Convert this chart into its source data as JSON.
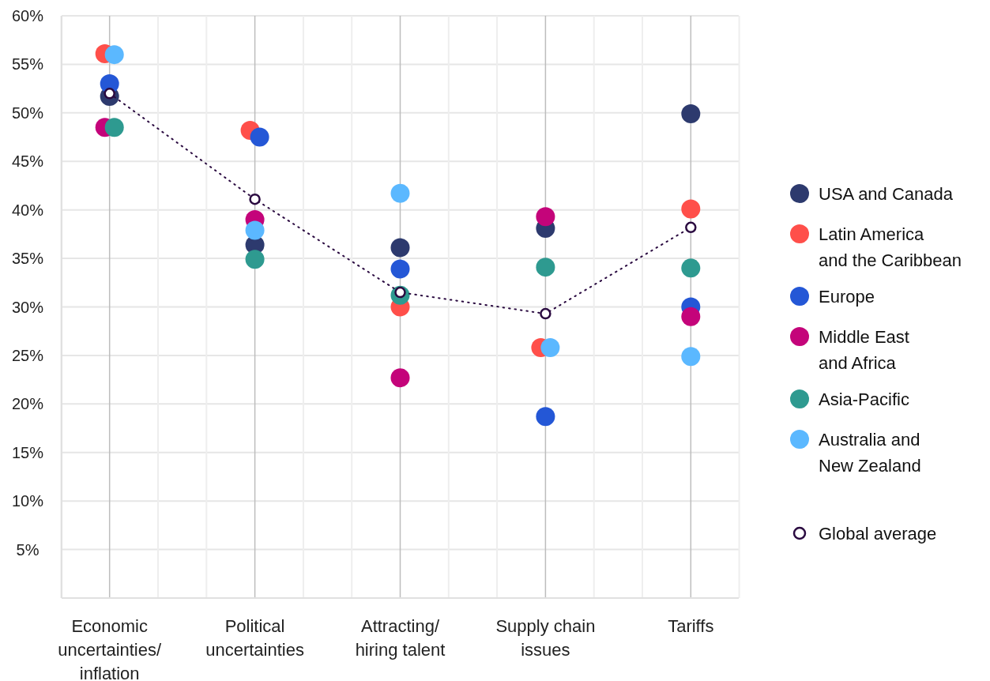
{
  "chart_data": {
    "type": "scatter",
    "categories": [
      "Economic uncertainties/ inflation",
      "Political uncertainties",
      "Attracting/ hiring talent",
      "Supply chain issues",
      "Tariffs"
    ],
    "ylim": [
      0,
      60
    ],
    "yticks": [
      {
        "value": 5,
        "label": "5%"
      },
      {
        "value": 10,
        "label": "10%"
      },
      {
        "value": 15,
        "label": "15%"
      },
      {
        "value": 20,
        "label": "20%"
      },
      {
        "value": 25,
        "label": "25%"
      },
      {
        "value": 30,
        "label": "30%"
      },
      {
        "value": 35,
        "label": "35%"
      },
      {
        "value": 40,
        "label": "40%"
      },
      {
        "value": 45,
        "label": "45%"
      },
      {
        "value": 50,
        "label": "50%"
      },
      {
        "value": 55,
        "label": "55%"
      },
      {
        "value": 60,
        "label": "60%"
      }
    ],
    "grid": true,
    "legend": "right",
    "marker": "circle",
    "series": [
      {
        "name": "USA and Canada",
        "color": "#2d3a6e",
        "values": [
          51.7,
          36.4,
          36.1,
          38.1,
          49.9
        ]
      },
      {
        "name": "Latin America and the Caribbean",
        "color": "#ff4f4a",
        "values": [
          56.1,
          48.2,
          30,
          25.8,
          40.1
        ]
      },
      {
        "name": "Europe",
        "color": "#2457d6",
        "values": [
          53,
          47.5,
          33.9,
          18.7,
          30
        ]
      },
      {
        "name": "Middle East and Africa",
        "color": "#c4047a",
        "values": [
          48.5,
          39,
          22.7,
          39.3,
          29
        ]
      },
      {
        "name": "Asia-Pacific",
        "color": "#2e9a90",
        "values": [
          48.5,
          34.9,
          31.2,
          34.1,
          34
        ]
      },
      {
        "name": "Australia and New Zealand",
        "color": "#5bb8ff",
        "values": [
          56,
          37.9,
          41.7,
          25.8,
          24.9
        ]
      },
      {
        "name": "Global average",
        "type": "line",
        "color": "#2a0a40",
        "line_style": "dotted",
        "values": [
          52,
          41.1,
          31.5,
          29.3,
          38.2
        ]
      }
    ]
  }
}
